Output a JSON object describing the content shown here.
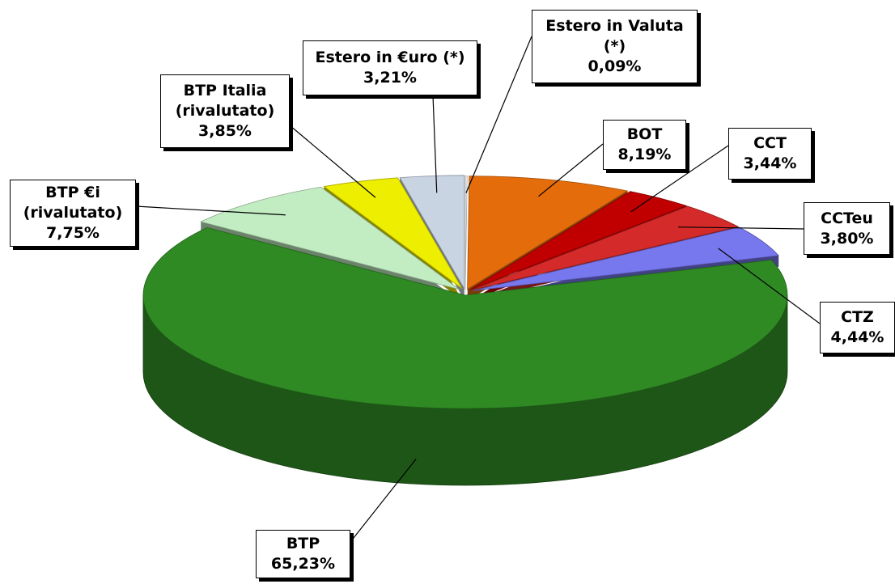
{
  "chart_data": {
    "type": "pie",
    "categories": [
      "Estero in Valuta\n(*)",
      "BOT",
      "CCT",
      "CCTeu",
      "CTZ",
      "BTP",
      "BTP €i\n(rivalutato)",
      "BTP Italia\n(rivalutato)",
      "Estero in €uro (*)"
    ],
    "values": [
      0.09,
      8.19,
      3.44,
      3.8,
      4.44,
      65.23,
      7.75,
      3.85,
      3.21
    ],
    "value_labels": [
      "0,09%",
      "8,19%",
      "3,44%",
      "3,80%",
      "4,44%",
      "65,23%",
      "7,75%",
      "3,85%",
      "3,21%"
    ],
    "colors": [
      "#f2f2f2",
      "#e46c0a",
      "#c00000",
      "#d42a2a",
      "#7777ee",
      "#2f8a24",
      "#c2ecc2",
      "#eeee00",
      "#c9d4e3"
    ]
  }
}
